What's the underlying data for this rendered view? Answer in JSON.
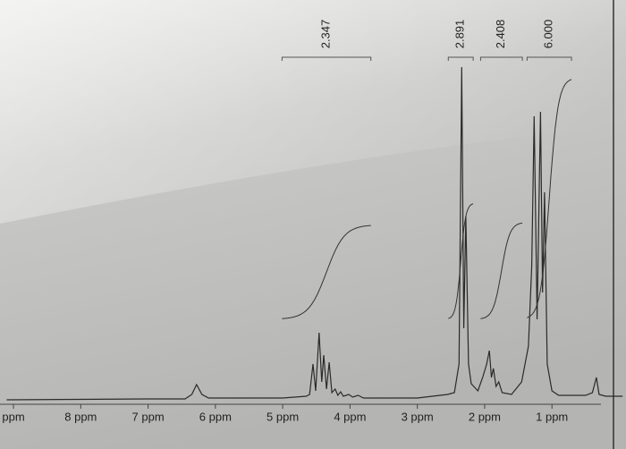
{
  "chart_data": {
    "type": "nmr",
    "x": [
      9.1,
      7.0,
      6.45,
      6.35,
      6.28,
      6.2,
      6.1,
      5.0,
      4.65,
      4.6,
      4.55,
      4.51,
      4.46,
      4.42,
      4.39,
      4.35,
      4.31,
      4.27,
      4.22,
      4.18,
      4.14,
      4.1,
      4.02,
      3.96,
      3.88,
      3.8,
      3.0,
      2.55,
      2.45,
      2.38,
      2.34,
      2.31,
      2.28,
      2.24,
      2.2,
      2.1,
      2.03,
      1.97,
      1.93,
      1.9,
      1.87,
      1.83,
      1.79,
      1.74,
      1.6,
      1.45,
      1.35,
      1.3,
      1.265,
      1.22,
      1.17,
      1.14,
      1.11,
      1.07,
      1.0,
      0.9,
      0.5,
      0.4,
      0.34,
      0.3,
      0.2,
      -0.05
    ],
    "series": [
      {
        "color": "#2a2a2a",
        "values": [
          0,
          1,
          1,
          6,
          17,
          6,
          2,
          2,
          4,
          6,
          40,
          10,
          75,
          20,
          50,
          12,
          42,
          8,
          12,
          5,
          9,
          4,
          6,
          3,
          5,
          2,
          2,
          6,
          8,
          40,
          372,
          80,
          205,
          40,
          18,
          10,
          25,
          40,
          55,
          25,
          35,
          15,
          20,
          8,
          6,
          20,
          60,
          150,
          317,
          90,
          322,
          120,
          232,
          40,
          10,
          5,
          5,
          8,
          25,
          6,
          4,
          4
        ]
      }
    ],
    "xlim": [
      9.2,
      -0.1
    ],
    "ylim": [
      0,
      400
    ],
    "xticks": [
      {
        "value": 9,
        "label": "ppm"
      },
      {
        "value": 8,
        "label": "8 ppm"
      },
      {
        "value": 7,
        "label": "7 ppm"
      },
      {
        "value": 6,
        "label": "6 ppm"
      },
      {
        "value": 5,
        "label": "5 ppm"
      },
      {
        "value": 4,
        "label": "4 ppm"
      },
      {
        "value": 3,
        "label": "3 ppm"
      },
      {
        "value": 2,
        "label": "2 ppm"
      },
      {
        "value": 1,
        "label": "1 ppm"
      }
    ],
    "integrals": {
      "values": [
        2.347,
        2.891,
        2.408,
        6
      ],
      "value_labels": [
        "2.347",
        "2.891",
        "2.408",
        "6.000"
      ],
      "ranges": [
        [
          5.01,
          3.69
        ],
        [
          2.54,
          2.17
        ],
        [
          2.06,
          1.44
        ],
        [
          1.37,
          0.71
        ]
      ]
    }
  }
}
